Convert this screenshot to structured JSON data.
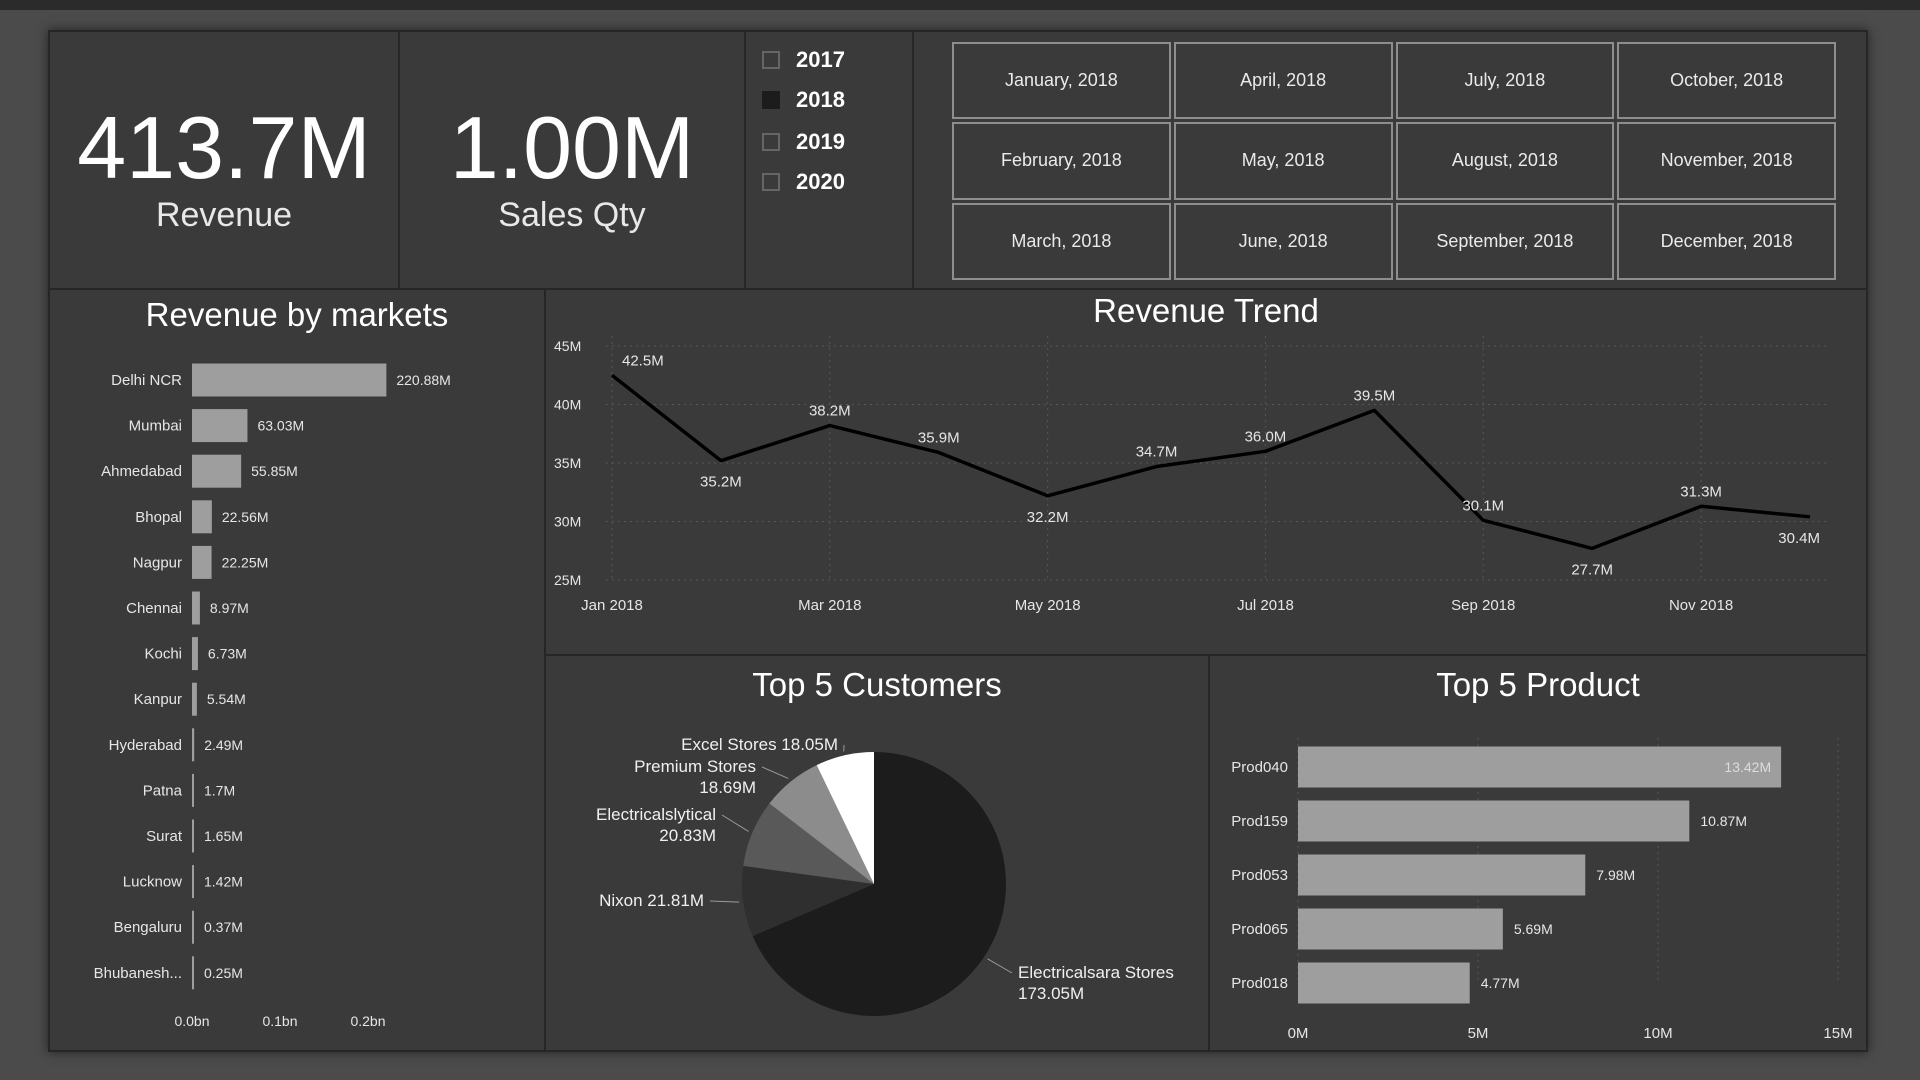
{
  "kpis": {
    "revenue": {
      "value": "413.7M",
      "label": "Revenue"
    },
    "sales_qty": {
      "value": "1.00M",
      "label": "Sales Qty"
    }
  },
  "year_filter": [
    {
      "label": "2017",
      "checked": false
    },
    {
      "label": "2018",
      "checked": true
    },
    {
      "label": "2019",
      "checked": false
    },
    {
      "label": "2020",
      "checked": false
    }
  ],
  "month_filter": [
    "January, 2018",
    "April, 2018",
    "July, 2018",
    "October, 2018",
    "February, 2018",
    "May, 2018",
    "August, 2018",
    "November, 2018",
    "March, 2018",
    "June, 2018",
    "September, 2018",
    "December, 2018"
  ],
  "colors": {
    "bar": "#9e9e9e",
    "line": "#000000",
    "pie": [
      "#1c1c1c",
      "#2f2f2f",
      "#595959",
      "#8c8c8c",
      "#ffffff"
    ]
  },
  "chart_data": [
    {
      "id": "markets",
      "type": "bar",
      "orientation": "horizontal",
      "title": "Revenue by markets",
      "categories": [
        "Delhi NCR",
        "Mumbai",
        "Ahmedabad",
        "Bhopal",
        "Nagpur",
        "Chennai",
        "Kochi",
        "Kanpur",
        "Hyderabad",
        "Patna",
        "Surat",
        "Lucknow",
        "Bengaluru",
        "Bhubanesh..."
      ],
      "values": [
        0.22088,
        0.06303,
        0.05585,
        0.02256,
        0.02225,
        0.00897,
        0.00673,
        0.00554,
        0.00249,
        0.0017,
        0.00165,
        0.00142,
        0.00037,
        0.00025
      ],
      "data_labels": [
        "220.88M",
        "63.03M",
        "55.85M",
        "22.56M",
        "22.25M",
        "8.97M",
        "6.73M",
        "5.54M",
        "2.49M",
        "1.7M",
        "1.65M",
        "1.42M",
        "0.37M",
        "0.25M"
      ],
      "xlim": [
        0,
        0.25
      ],
      "xticks": [
        {
          "value": 0,
          "label": "0.0bn"
        },
        {
          "value": 0.1,
          "label": "0.1bn"
        },
        {
          "value": 0.2,
          "label": "0.2bn"
        }
      ]
    },
    {
      "id": "trend",
      "type": "line",
      "title": "Revenue Trend",
      "x": [
        "Jan 2018",
        "Feb 2018",
        "Mar 2018",
        "Apr 2018",
        "May 2018",
        "Jun 2018",
        "Jul 2018",
        "Aug 2018",
        "Sep 2018",
        "Oct 2018",
        "Nov 2018",
        "Dec 2018"
      ],
      "values": [
        42.5,
        35.2,
        38.2,
        35.9,
        32.2,
        34.7,
        36.0,
        39.5,
        30.1,
        27.7,
        31.3,
        30.4
      ],
      "data_labels": [
        "42.5M",
        "35.2M",
        "38.2M",
        "35.9M",
        "32.2M",
        "34.7M",
        "36.0M",
        "39.5M",
        "30.1M",
        "27.7M",
        "31.3M",
        "30.4M"
      ],
      "ylim": [
        25,
        45
      ],
      "yticks": [
        {
          "value": 25,
          "label": "25M"
        },
        {
          "value": 30,
          "label": "30M"
        },
        {
          "value": 35,
          "label": "35M"
        },
        {
          "value": 40,
          "label": "40M"
        },
        {
          "value": 45,
          "label": "45M"
        }
      ],
      "xticks": [
        "Jan 2018",
        "Mar 2018",
        "May 2018",
        "Jul 2018",
        "Sep 2018",
        "Nov 2018"
      ],
      "grid": true
    },
    {
      "id": "customers",
      "type": "pie",
      "title": "Top 5 Customers",
      "slices": [
        {
          "label": "Electricalsara Stores",
          "value": 173.05,
          "display": "173.05M"
        },
        {
          "label": "Nixon",
          "value": 21.81,
          "display": "21.81M"
        },
        {
          "label": "Electricalslytical",
          "value": 20.83,
          "display": "20.83M"
        },
        {
          "label": "Premium Stores",
          "value": 18.69,
          "display": "18.69M"
        },
        {
          "label": "Excel Stores",
          "value": 18.05,
          "display": "18.05M"
        }
      ]
    },
    {
      "id": "products",
      "type": "bar",
      "orientation": "horizontal",
      "title": "Top 5 Product",
      "categories": [
        "Prod040",
        "Prod159",
        "Prod053",
        "Prod065",
        "Prod018"
      ],
      "values": [
        13.42,
        10.87,
        7.98,
        5.69,
        4.77
      ],
      "data_labels": [
        "13.42M",
        "10.87M",
        "7.98M",
        "5.69M",
        "4.77M"
      ],
      "xlim": [
        0,
        15
      ],
      "xticks": [
        {
          "value": 0,
          "label": "0M"
        },
        {
          "value": 5,
          "label": "5M"
        },
        {
          "value": 10,
          "label": "10M"
        },
        {
          "value": 15,
          "label": "15M"
        }
      ],
      "grid": true
    }
  ]
}
